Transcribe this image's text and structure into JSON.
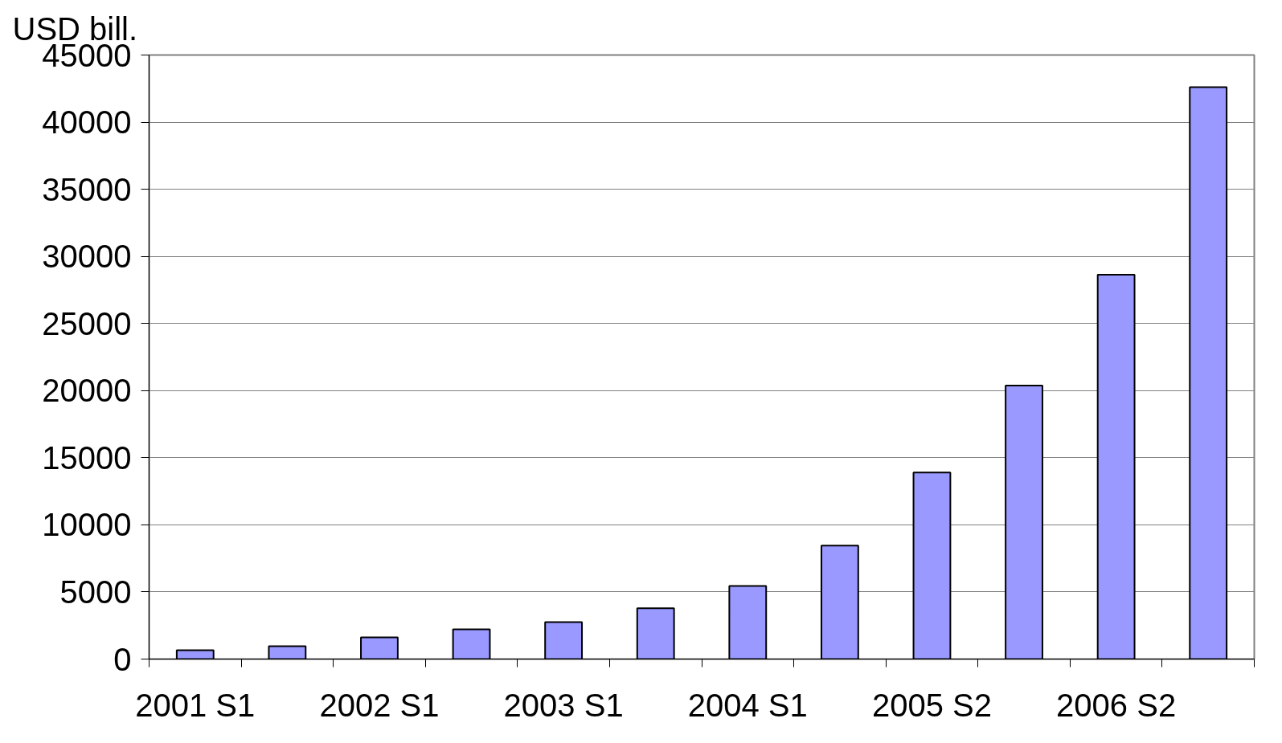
{
  "chart_data": {
    "type": "bar",
    "ylabel": "USD bill.",
    "categories": [
      "2001 S1",
      null,
      "2002 S1",
      null,
      "2003 S1",
      null,
      "2004 S1",
      null,
      "2005 S2",
      null,
      "2006 S2",
      null
    ],
    "values": [
      660,
      960,
      1620,
      2220,
      2760,
      3780,
      5450,
      8450,
      13900,
      20370,
      28640,
      42600
    ],
    "color": "#9999ff",
    "ylim": [
      0,
      45000
    ],
    "yticks": [
      0,
      5000,
      10000,
      15000,
      20000,
      25000,
      30000,
      35000,
      40000,
      45000
    ],
    "grid": "y"
  }
}
